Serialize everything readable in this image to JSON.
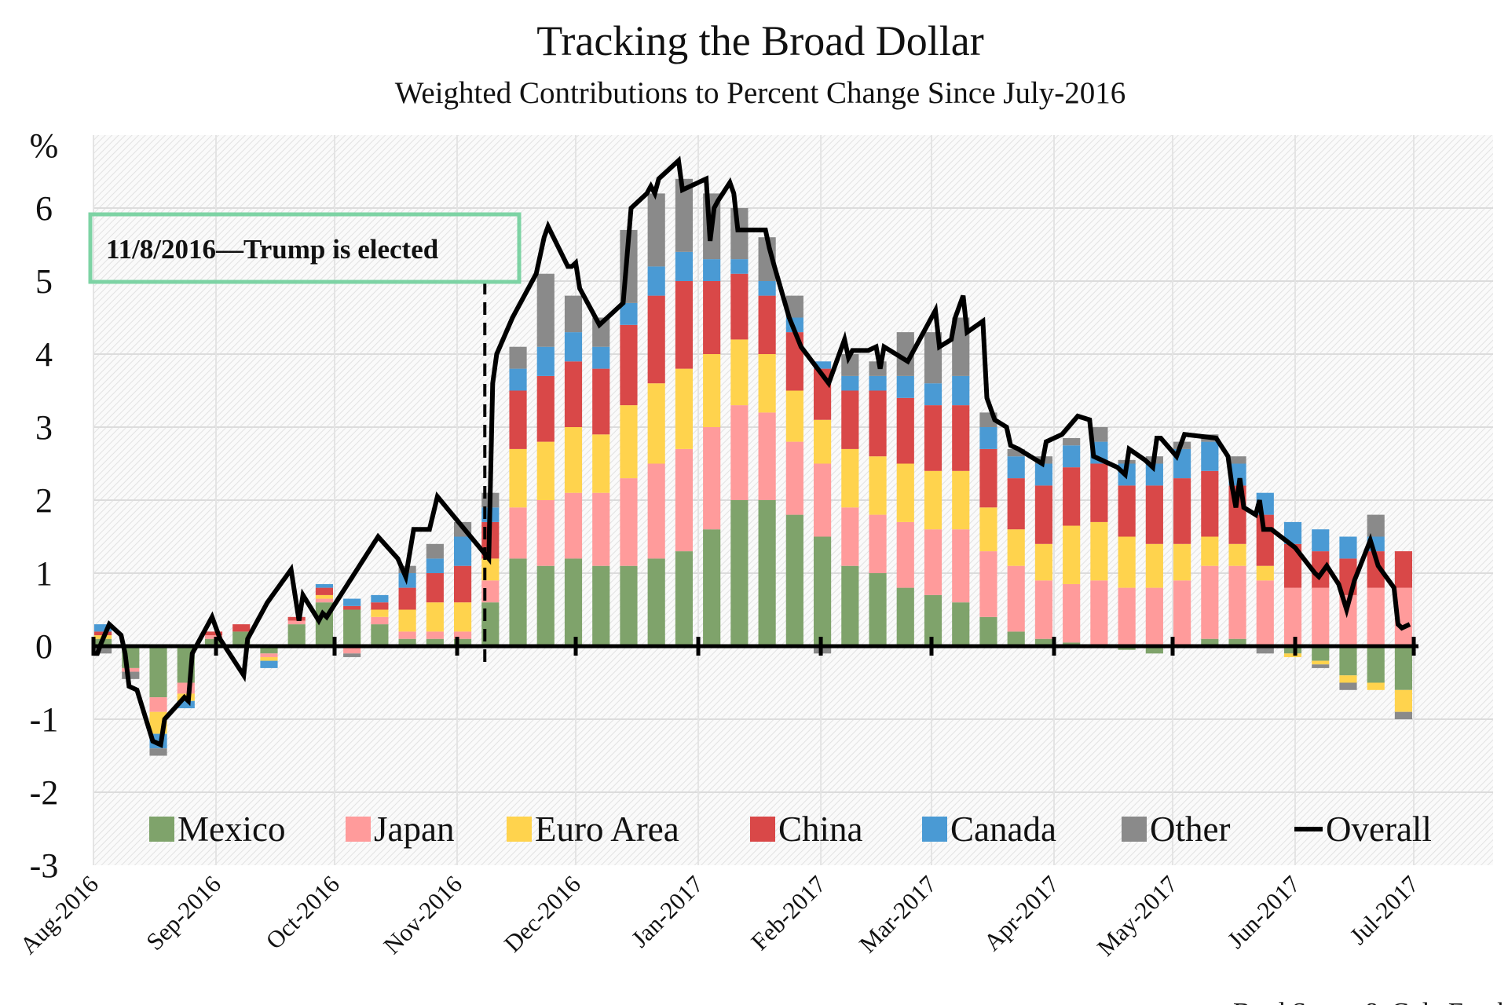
{
  "chart_data": {
    "type": "bar+line",
    "title": "Tracking the Broad Dollar",
    "subtitle": "Weighted Contributions to Percent Change Since July-2016",
    "ylabel": "%",
    "ylim": [
      -3,
      7
    ],
    "yticks": [
      -3,
      -2,
      -1,
      0,
      1,
      2,
      3,
      4,
      5,
      6
    ],
    "xticks": [
      {
        "date": "2016-08-01",
        "label": "Aug-2016"
      },
      {
        "date": "2016-09-01",
        "label": "Sep-2016"
      },
      {
        "date": "2016-10-01",
        "label": "Oct-2016"
      },
      {
        "date": "2016-11-01",
        "label": "Nov-2016"
      },
      {
        "date": "2016-12-01",
        "label": "Dec-2016"
      },
      {
        "date": "2017-01-01",
        "label": "Jan-2017"
      },
      {
        "date": "2017-02-01",
        "label": "Feb-2017"
      },
      {
        "date": "2017-03-01",
        "label": "Mar-2017"
      },
      {
        "date": "2017-04-01",
        "label": "Apr-2017"
      },
      {
        "date": "2017-05-01",
        "label": "May-2017"
      },
      {
        "date": "2017-06-01",
        "label": "Jun-2017"
      },
      {
        "date": "2017-07-01",
        "label": "Jul-2017"
      }
    ],
    "xlim": [
      "2016-08-01",
      "2017-07-21"
    ],
    "grid": true,
    "stacked": true,
    "legend_position": "bottom",
    "bars": {
      "x": [
        "2016-08-01",
        "2016-08-08",
        "2016-08-15",
        "2016-08-22",
        "2016-08-29",
        "2016-09-05",
        "2016-09-12",
        "2016-09-19",
        "2016-09-26",
        "2016-10-03",
        "2016-10-10",
        "2016-10-17",
        "2016-10-24",
        "2016-10-31",
        "2016-11-07",
        "2016-11-14",
        "2016-11-21",
        "2016-11-28",
        "2016-12-05",
        "2016-12-12",
        "2016-12-19",
        "2016-12-26",
        "2017-01-02",
        "2017-01-09",
        "2017-01-16",
        "2017-01-23",
        "2017-01-30",
        "2017-02-06",
        "2017-02-13",
        "2017-02-20",
        "2017-02-27",
        "2017-03-06",
        "2017-03-13",
        "2017-03-20",
        "2017-03-27",
        "2017-04-03",
        "2017-04-10",
        "2017-04-17",
        "2017-04-24",
        "2017-05-01",
        "2017-05-08",
        "2017-05-15",
        "2017-05-22",
        "2017-05-29",
        "2017-06-05",
        "2017-06-12",
        "2017-06-19",
        "2017-06-26"
      ],
      "series": [
        {
          "name": "Mexico",
          "color": "#7fa36b",
          "values": [
            0.1,
            -0.3,
            -0.7,
            -0.5,
            0.1,
            0.2,
            -0.1,
            0.3,
            0.6,
            0.5,
            0.3,
            0.1,
            0.1,
            0.1,
            0.6,
            1.2,
            1.1,
            1.2,
            1.1,
            1.1,
            1.2,
            1.3,
            1.6,
            2.0,
            2.0,
            1.8,
            1.5,
            1.1,
            1.0,
            0.8,
            0.7,
            0.6,
            0.4,
            0.2,
            0.1,
            0.05,
            0,
            -0.05,
            -0.1,
            0,
            0.1,
            0.1,
            0,
            -0.1,
            -0.2,
            -0.4,
            -0.5,
            -0.6
          ]
        },
        {
          "name": "Japan",
          "color": "#ff9b9b",
          "values": [
            0.0,
            -0.05,
            -0.2,
            -0.15,
            0.05,
            0.0,
            -0.05,
            0.05,
            0.05,
            -0.1,
            0.1,
            0.1,
            0.1,
            0.1,
            0.3,
            0.7,
            0.9,
            0.9,
            1.0,
            1.2,
            1.3,
            1.4,
            1.4,
            1.3,
            1.2,
            1.0,
            1.0,
            0.8,
            0.8,
            0.9,
            0.9,
            1.0,
            0.9,
            0.9,
            0.8,
            0.8,
            0.9,
            0.8,
            0.8,
            0.9,
            1.0,
            1.0,
            0.9,
            0.8,
            0.8,
            0.7,
            0.8,
            0.8
          ]
        },
        {
          "name": "Euro Area",
          "color": "#ffd34d",
          "values": [
            0.05,
            0,
            -0.3,
            -0.1,
            0,
            0,
            -0.05,
            0,
            0.05,
            0,
            0.1,
            0.3,
            0.4,
            0.4,
            0.3,
            0.8,
            0.8,
            0.9,
            0.8,
            1.0,
            1.1,
            1.1,
            1.0,
            0.9,
            0.8,
            0.7,
            0.6,
            0.8,
            0.8,
            0.8,
            0.8,
            0.8,
            0.6,
            0.5,
            0.5,
            0.8,
            0.8,
            0.7,
            0.6,
            0.5,
            0.4,
            0.3,
            0.2,
            -0.05,
            -0.05,
            -0.1,
            -0.1,
            -0.3
          ]
        },
        {
          "name": "China",
          "color": "#d94848",
          "values": [
            0.05,
            0,
            0,
            0,
            0.05,
            0.1,
            0,
            0.05,
            0.1,
            0.05,
            0.1,
            0.3,
            0.4,
            0.5,
            0.5,
            0.8,
            0.9,
            0.9,
            0.9,
            1.1,
            1.2,
            1.2,
            1.0,
            0.9,
            0.8,
            0.8,
            0.7,
            0.8,
            0.9,
            0.9,
            0.9,
            0.9,
            0.8,
            0.7,
            0.8,
            0.8,
            0.8,
            0.7,
            0.8,
            0.9,
            0.9,
            0.8,
            0.7,
            0.6,
            0.5,
            0.5,
            0.5,
            0.5
          ]
        },
        {
          "name": "Canada",
          "color": "#4a9ad4",
          "values": [
            0.1,
            0,
            -0.2,
            -0.1,
            0,
            0,
            -0.1,
            0,
            0.05,
            0.1,
            0.1,
            0.2,
            0.2,
            0.4,
            0.2,
            0.3,
            0.4,
            0.4,
            0.3,
            0.3,
            0.4,
            0.4,
            0.3,
            0.2,
            0.2,
            0.2,
            0.1,
            0.2,
            0.2,
            0.3,
            0.3,
            0.4,
            0.3,
            0.3,
            0.3,
            0.3,
            0.3,
            0.3,
            0.3,
            0.4,
            0.4,
            0.3,
            0.3,
            0.3,
            0.3,
            0.3,
            0.2,
            0
          ]
        },
        {
          "name": "Other",
          "color": "#8a8a8a",
          "values": [
            -0.1,
            -0.1,
            -0.1,
            0,
            0,
            0,
            0,
            0,
            0,
            -0.05,
            0,
            0.1,
            0.2,
            0.2,
            0.2,
            0.3,
            1.0,
            0.5,
            0.4,
            1.0,
            1.0,
            1.0,
            0.9,
            0.7,
            0.6,
            0.3,
            -0.1,
            0.3,
            0.2,
            0.6,
            0.7,
            0.8,
            0.2,
            0.1,
            0.1,
            0.1,
            0.2,
            0.05,
            0.1,
            0.1,
            0.1,
            0.1,
            -0.1,
            0,
            -0.05,
            -0.1,
            0.3,
            -0.1
          ]
        }
      ]
    },
    "line": {
      "name": "Overall",
      "color": "#000000",
      "points": [
        [
          "2016-08-01",
          -0.1
        ],
        [
          "2016-08-02",
          -0.1
        ],
        [
          "2016-08-03",
          0.05
        ],
        [
          "2016-08-05",
          0.3
        ],
        [
          "2016-08-08",
          0.15
        ],
        [
          "2016-08-09",
          -0.1
        ],
        [
          "2016-08-10",
          -0.55
        ],
        [
          "2016-08-12",
          -0.6
        ],
        [
          "2016-08-16",
          -1.3
        ],
        [
          "2016-08-18",
          -1.35
        ],
        [
          "2016-08-19",
          -1.0
        ],
        [
          "2016-08-24",
          -0.7
        ],
        [
          "2016-08-25",
          -0.75
        ],
        [
          "2016-08-26",
          -0.1
        ],
        [
          "2016-08-31",
          0.4
        ],
        [
          "2016-09-02",
          0.1
        ],
        [
          "2016-09-08",
          -0.4
        ],
        [
          "2016-09-09",
          0.1
        ],
        [
          "2016-09-14",
          0.6
        ],
        [
          "2016-09-20",
          1.05
        ],
        [
          "2016-09-22",
          0.35
        ],
        [
          "2016-09-23",
          0.7
        ],
        [
          "2016-09-27",
          0.35
        ],
        [
          "2016-09-28",
          0.45
        ],
        [
          "2016-09-29",
          0.4
        ],
        [
          "2016-10-12",
          1.5
        ],
        [
          "2016-10-17",
          1.2
        ],
        [
          "2016-10-19",
          0.95
        ],
        [
          "2016-10-21",
          1.6
        ],
        [
          "2016-10-25",
          1.6
        ],
        [
          "2016-10-27",
          2.05
        ],
        [
          "2016-11-09",
          1.2
        ],
        [
          "2016-11-10",
          3.6
        ],
        [
          "2016-11-11",
          4.0
        ],
        [
          "2016-11-15",
          4.5
        ],
        [
          "2016-11-21",
          5.1
        ],
        [
          "2016-11-23",
          5.6
        ],
        [
          "2016-11-24",
          5.75
        ],
        [
          "2016-11-29",
          5.2
        ],
        [
          "2016-11-30",
          5.2
        ],
        [
          "2016-12-01",
          5.25
        ],
        [
          "2016-12-02",
          4.9
        ],
        [
          "2016-12-05",
          4.6
        ],
        [
          "2016-12-07",
          4.4
        ],
        [
          "2016-12-13",
          4.7
        ],
        [
          "2016-12-15",
          6.0
        ],
        [
          "2016-12-19",
          6.2
        ],
        [
          "2016-12-20",
          6.3
        ],
        [
          "2016-12-21",
          6.2
        ],
        [
          "2016-12-22",
          6.4
        ],
        [
          "2016-12-27",
          6.65
        ],
        [
          "2016-12-28",
          6.25
        ],
        [
          "2017-01-03",
          6.4
        ],
        [
          "2017-01-04",
          5.55
        ],
        [
          "2017-01-05",
          6.0
        ],
        [
          "2017-01-06",
          6.1
        ],
        [
          "2017-01-09",
          6.35
        ],
        [
          "2017-01-10",
          6.2
        ],
        [
          "2017-01-11",
          5.7
        ],
        [
          "2017-01-18",
          5.7
        ],
        [
          "2017-01-19",
          5.45
        ],
        [
          "2017-01-20",
          5.25
        ],
        [
          "2017-01-24",
          4.5
        ],
        [
          "2017-01-27",
          4.1
        ],
        [
          "2017-02-03",
          3.6
        ],
        [
          "2017-02-07",
          4.2
        ],
        [
          "2017-02-08",
          3.95
        ],
        [
          "2017-02-09",
          4.05
        ],
        [
          "2017-02-13",
          4.05
        ],
        [
          "2017-02-15",
          4.1
        ],
        [
          "2017-02-16",
          3.8
        ],
        [
          "2017-02-17",
          4.1
        ],
        [
          "2017-02-23",
          3.9
        ],
        [
          "2017-03-02",
          4.6
        ],
        [
          "2017-03-03",
          4.1
        ],
        [
          "2017-03-06",
          4.2
        ],
        [
          "2017-03-07",
          4.5
        ],
        [
          "2017-03-09",
          4.8
        ],
        [
          "2017-03-10",
          4.3
        ],
        [
          "2017-03-14",
          4.45
        ],
        [
          "2017-03-15",
          3.4
        ],
        [
          "2017-03-17",
          3.1
        ],
        [
          "2017-03-20",
          3.0
        ],
        [
          "2017-03-21",
          2.75
        ],
        [
          "2017-03-23",
          2.7
        ],
        [
          "2017-03-29",
          2.5
        ],
        [
          "2017-03-30",
          2.8
        ],
        [
          "2017-04-03",
          2.9
        ],
        [
          "2017-04-07",
          3.15
        ],
        [
          "2017-04-10",
          3.1
        ],
        [
          "2017-04-11",
          2.6
        ],
        [
          "2017-04-17",
          2.45
        ],
        [
          "2017-04-19",
          2.35
        ],
        [
          "2017-04-20",
          2.7
        ],
        [
          "2017-04-24",
          2.55
        ],
        [
          "2017-04-26",
          2.45
        ],
        [
          "2017-04-27",
          2.85
        ],
        [
          "2017-04-28",
          2.85
        ],
        [
          "2017-05-02",
          2.6
        ],
        [
          "2017-05-04",
          2.9
        ],
        [
          "2017-05-12",
          2.85
        ],
        [
          "2017-05-15",
          2.6
        ],
        [
          "2017-05-16",
          2.2
        ],
        [
          "2017-05-17",
          1.9
        ],
        [
          "2017-05-18",
          2.3
        ],
        [
          "2017-05-19",
          1.9
        ],
        [
          "2017-05-22",
          1.8
        ],
        [
          "2017-05-23",
          2.0
        ],
        [
          "2017-05-24",
          1.6
        ],
        [
          "2017-05-26",
          1.6
        ],
        [
          "2017-06-01",
          1.35
        ],
        [
          "2017-06-06",
          1.0
        ],
        [
          "2017-06-07",
          0.95
        ],
        [
          "2017-06-09",
          1.1
        ],
        [
          "2017-06-12",
          0.85
        ],
        [
          "2017-06-14",
          0.5
        ],
        [
          "2017-06-16",
          0.9
        ],
        [
          "2017-06-20",
          1.45
        ],
        [
          "2017-06-22",
          1.1
        ],
        [
          "2017-06-26",
          0.8
        ],
        [
          "2017-06-27",
          0.3
        ],
        [
          "2017-06-28",
          0.25
        ],
        [
          "2017-06-30",
          0.3
        ]
      ]
    },
    "annotation": {
      "text": "11/8/2016—Trump is elected",
      "date": "2016-11-08",
      "border_color": "#7dd3a4"
    },
    "source": "Brad Setser & Cole Frank"
  }
}
